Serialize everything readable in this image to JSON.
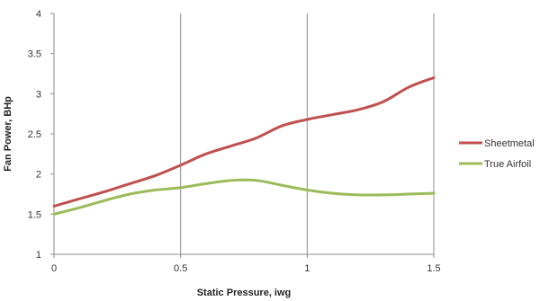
{
  "chart_data": {
    "type": "line",
    "title": "",
    "xlabel": "Static Pressure, iwg",
    "ylabel": "Fan Power, BHp",
    "xlim": [
      0,
      1.5
    ],
    "ylim": [
      1,
      4
    ],
    "xticks": [
      0,
      0.5,
      1,
      1.5
    ],
    "xtick_labels": [
      "0",
      "0.5",
      "1",
      "1.5"
    ],
    "yticks": [
      1,
      1.5,
      2,
      2.5,
      3,
      3.5,
      4
    ],
    "ytick_labels": [
      "1",
      "1.5",
      "2",
      "2.5",
      "3",
      "3.5",
      "4"
    ],
    "grid": "vertical",
    "legend_position": "right",
    "series": [
      {
        "name": "Sheetmetal",
        "color": "#c0504d",
        "x": [
          0,
          0.1,
          0.2,
          0.3,
          0.4,
          0.5,
          0.6,
          0.7,
          0.8,
          0.9,
          1.0,
          1.1,
          1.2,
          1.3,
          1.4,
          1.5
        ],
        "y": [
          1.6,
          1.69,
          1.78,
          1.88,
          1.98,
          2.11,
          2.25,
          2.35,
          2.45,
          2.6,
          2.68,
          2.74,
          2.8,
          2.9,
          3.08,
          3.2
        ]
      },
      {
        "name": "True Airfoil",
        "color": "#9bbb59",
        "x": [
          0,
          0.1,
          0.2,
          0.3,
          0.4,
          0.5,
          0.6,
          0.7,
          0.8,
          0.9,
          1.0,
          1.1,
          1.2,
          1.3,
          1.4,
          1.5
        ],
        "y": [
          1.5,
          1.58,
          1.67,
          1.75,
          1.8,
          1.83,
          1.88,
          1.92,
          1.92,
          1.86,
          1.8,
          1.76,
          1.74,
          1.74,
          1.75,
          1.76
        ]
      }
    ]
  }
}
